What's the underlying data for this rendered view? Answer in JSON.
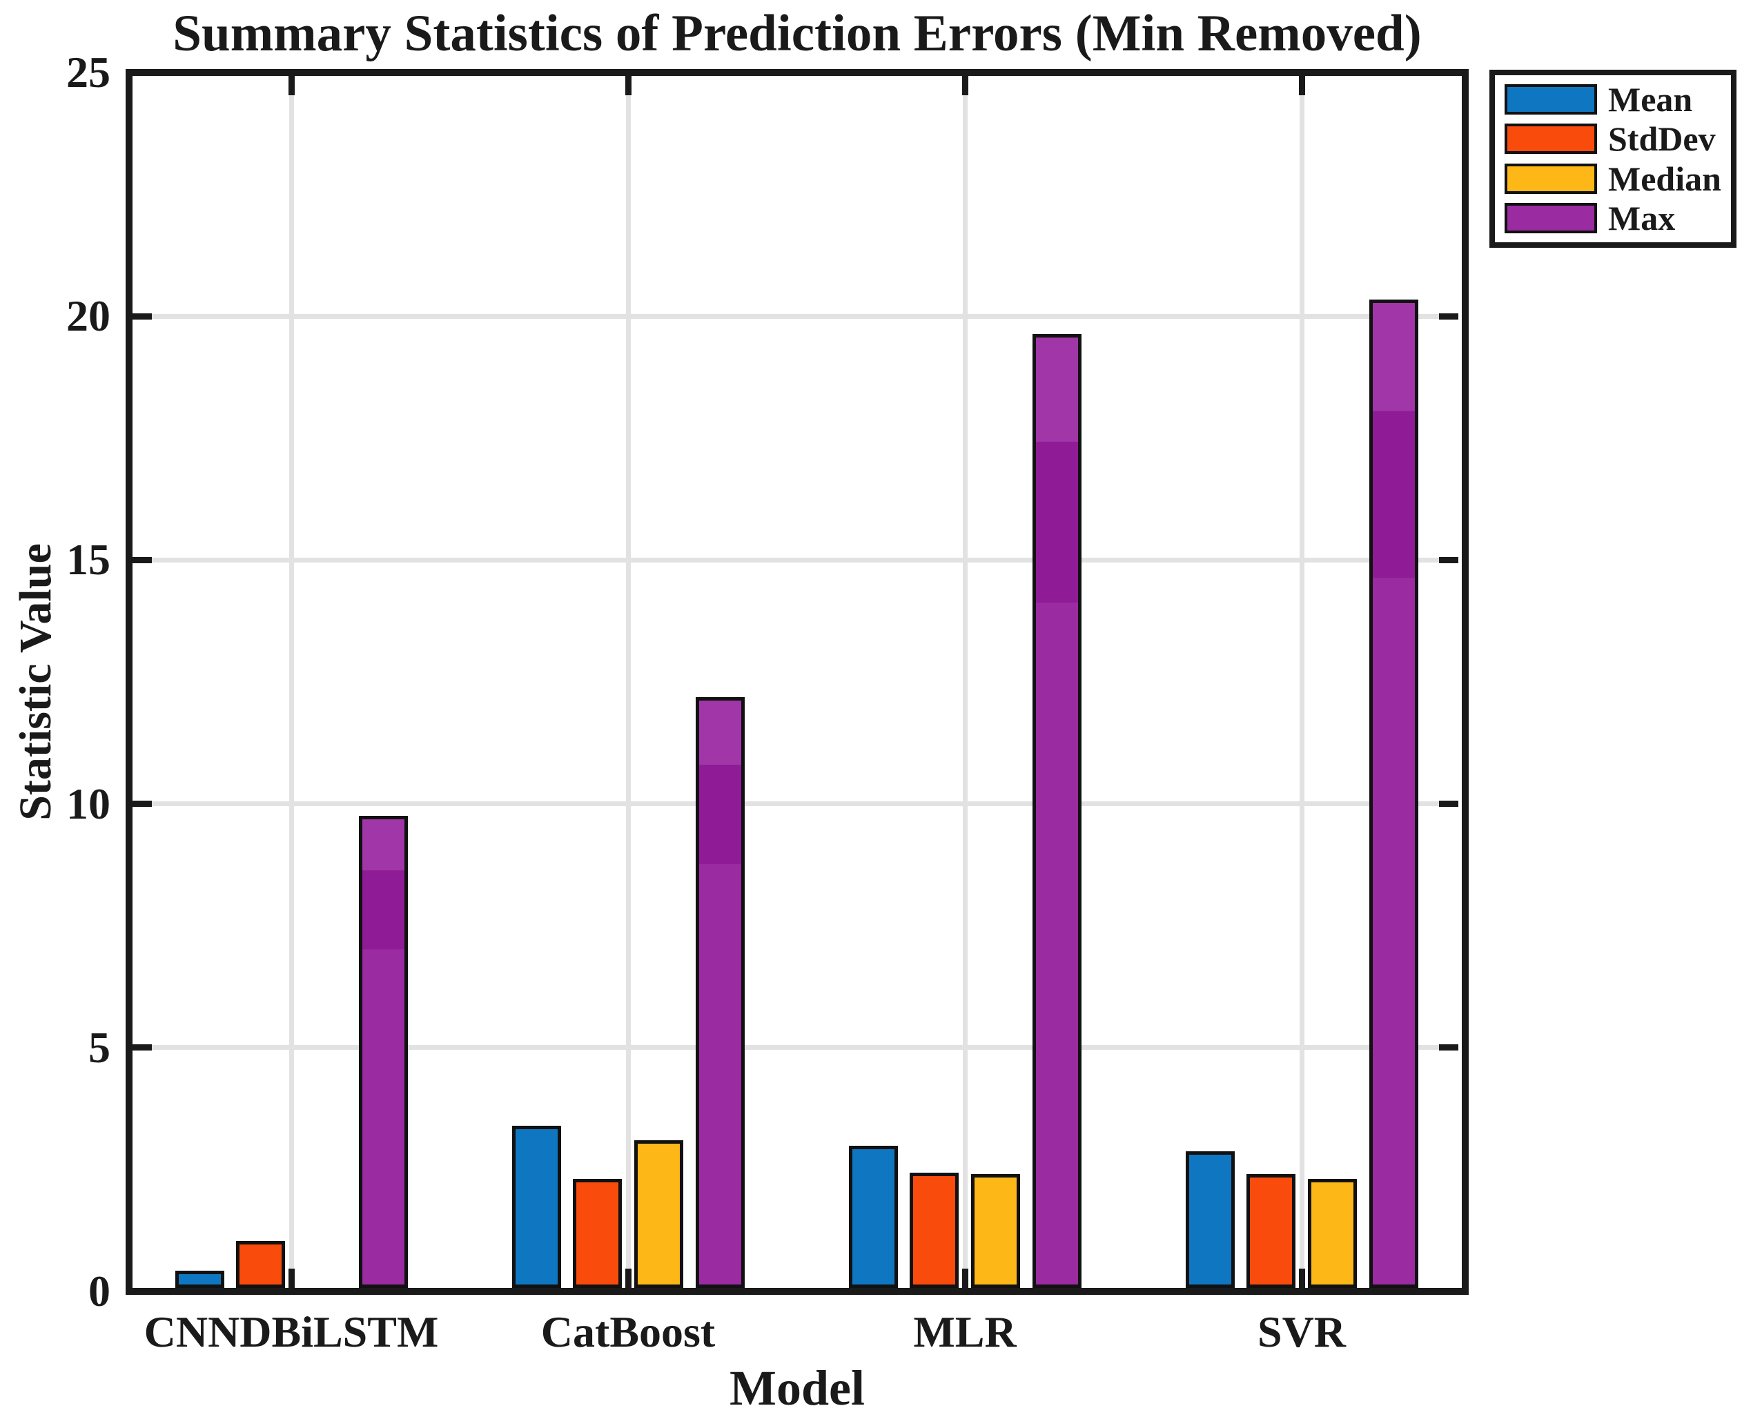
{
  "chart_data": {
    "type": "bar",
    "title": "Summary Statistics of Prediction Errors (Min Removed)",
    "xlabel": "Model",
    "ylabel": "Statistic Value",
    "ylim": [
      0,
      25
    ],
    "yticks": [
      0,
      5,
      10,
      15,
      20,
      25
    ],
    "grid": true,
    "legend_position": "outside-top-right",
    "categories": [
      "CNNDBiLSTM",
      "CatBoost",
      "MLR",
      "SVR"
    ],
    "series": [
      {
        "name": "Mean",
        "color": "#0F77C2",
        "values": [
          0.35,
          3.32,
          2.91,
          2.8
        ]
      },
      {
        "name": "StdDev",
        "color": "#F94C0C",
        "values": [
          0.96,
          2.24,
          2.37,
          2.33
        ]
      },
      {
        "name": "Median",
        "color": "#FDB717",
        "values": [
          0.0,
          3.03,
          2.34,
          2.24
        ]
      },
      {
        "name": "Max",
        "color": "#9A2BA1",
        "values": [
          9.68,
          12.12,
          19.56,
          20.27
        ]
      }
    ],
    "colors": {
      "axis": "#1a1a1a",
      "grid": "#e2e2e2",
      "bar_outline": "#111111",
      "max_band_light": "#A136A8",
      "max_band_dark": "#8F1C96"
    }
  }
}
